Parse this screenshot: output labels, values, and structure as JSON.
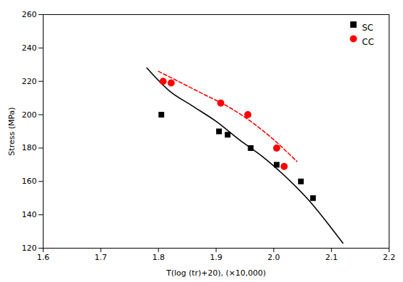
{
  "chart_data": {
    "type": "scatter",
    "xlabel": "T(log (tr)+20), (×10,000)",
    "ylabel": "Stress (MPa)",
    "xlim": [
      1.6,
      2.2
    ],
    "ylim": [
      120,
      260
    ],
    "xticks": [
      1.6,
      1.7,
      1.8,
      1.9,
      {
        "value": 2.0,
        "label": "2.0"
      },
      2.1,
      2.2
    ],
    "yticks": [
      120,
      140,
      160,
      180,
      200,
      220,
      240,
      260
    ],
    "grid": false,
    "legend": "upper right",
    "series": [
      {
        "name": "SC",
        "color": "#000000",
        "marker": "square",
        "x": [
          1.805,
          1.905,
          1.92,
          1.96,
          2.005,
          2.047,
          2.068
        ],
        "values": [
          200,
          190,
          188,
          180,
          170,
          160,
          150
        ],
        "fit": {
          "x": [
            1.78,
            1.82,
            1.86,
            1.9,
            1.94,
            1.98,
            2.02,
            2.06,
            2.1,
            2.12
          ],
          "values": [
            228,
            214,
            205,
            196,
            185,
            175,
            163,
            149,
            132,
            123
          ],
          "line_style": "solid"
        }
      },
      {
        "name": "CC",
        "color": "#ff0000",
        "marker": "circle",
        "x": [
          1.808,
          1.822,
          1.908,
          1.955,
          2.005,
          2.018
        ],
        "values": [
          220,
          219,
          207,
          200,
          180,
          169
        ],
        "fit": {
          "x": [
            1.8,
            1.84,
            1.88,
            1.92,
            1.96,
            2.0,
            2.04
          ],
          "values": [
            226,
            219,
            212,
            205,
            196,
            185,
            172
          ],
          "line_style": "dashed"
        }
      }
    ]
  }
}
